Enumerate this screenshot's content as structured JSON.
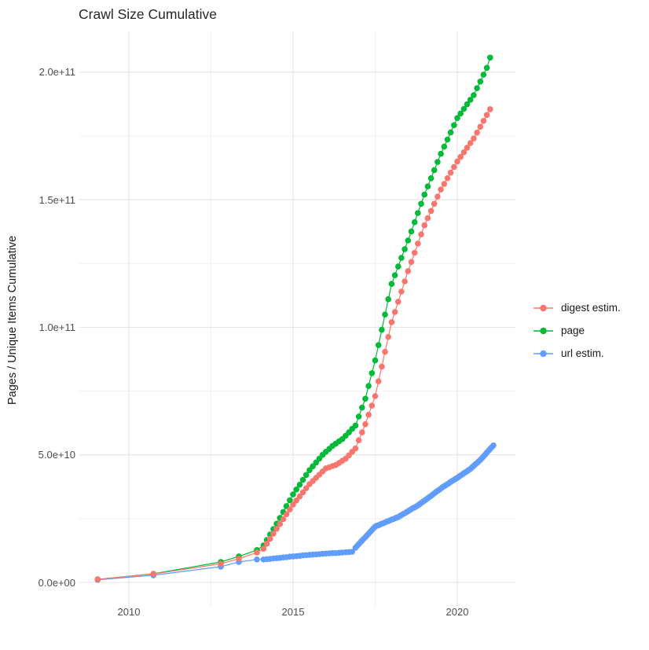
{
  "title": "Crawl Size Cumulative",
  "y_axis": {
    "label": "Pages / Unique Items Cumulative",
    "tick_labels": [
      "0.0e+00",
      "5.0e+10",
      "1.0e+11",
      "1.5e+11",
      "2.0e+11"
    ]
  },
  "x_axis": {
    "tick_labels": [
      "2010",
      "2015",
      "2020"
    ]
  },
  "legend": [
    {
      "label": "digest estim.",
      "color": "#F8766D"
    },
    {
      "label": "page",
      "color": "#00BA38"
    },
    {
      "label": "url estim.",
      "color": "#619CFF"
    }
  ],
  "chart_data": {
    "type": "scatter",
    "title": "Crawl Size Cumulative",
    "xlabel": "",
    "ylabel": "Pages / Unique Items Cumulative",
    "value_unit": "1e10 pages (e.g. 20.57 means 2.057e11)",
    "x_ticks": [
      2010,
      2015,
      2020
    ],
    "x_minor_ticks": [
      2012.5,
      2017.5
    ],
    "y_ticks": [
      0,
      5,
      10,
      15,
      20
    ],
    "y_minor_ticks": [
      2.5,
      7.5,
      12.5,
      17.5
    ],
    "xlim": [
      2008.45,
      2021.75
    ],
    "ylim": [
      -1.0,
      21.6
    ],
    "grid": "on",
    "legend_position": "right",
    "series": [
      {
        "name": "digest estim.",
        "color": "#F8766D",
        "points": [
          [
            2009.05,
            0.12
          ],
          [
            2010.75,
            0.33
          ],
          [
            2012.8,
            0.73
          ],
          [
            2013.35,
            0.93
          ],
          [
            2013.9,
            1.17
          ],
          [
            2014.1,
            1.32
          ],
          [
            2014.2,
            1.52
          ],
          [
            2014.3,
            1.71
          ],
          [
            2014.4,
            1.91
          ],
          [
            2014.5,
            2.1
          ],
          [
            2014.6,
            2.29
          ],
          [
            2014.7,
            2.48
          ],
          [
            2014.8,
            2.67
          ],
          [
            2014.9,
            2.86
          ],
          [
            2015.0,
            3.05
          ],
          [
            2015.1,
            3.21
          ],
          [
            2015.2,
            3.37
          ],
          [
            2015.3,
            3.53
          ],
          [
            2015.4,
            3.69
          ],
          [
            2015.5,
            3.85
          ],
          [
            2015.6,
            3.97
          ],
          [
            2015.7,
            4.1
          ],
          [
            2015.8,
            4.22
          ],
          [
            2015.9,
            4.35
          ],
          [
            2016.0,
            4.47
          ],
          [
            2016.1,
            4.51
          ],
          [
            2016.2,
            4.56
          ],
          [
            2016.3,
            4.6
          ],
          [
            2016.4,
            4.68
          ],
          [
            2016.5,
            4.77
          ],
          [
            2016.6,
            4.85
          ],
          [
            2016.7,
            4.98
          ],
          [
            2016.8,
            5.12
          ],
          [
            2016.9,
            5.25
          ],
          [
            2017.0,
            5.57
          ],
          [
            2017.1,
            5.88
          ],
          [
            2017.2,
            6.2
          ],
          [
            2017.3,
            6.57
          ],
          [
            2017.4,
            6.93
          ],
          [
            2017.5,
            7.3
          ],
          [
            2017.6,
            7.88
          ],
          [
            2017.7,
            8.46
          ],
          [
            2017.8,
            9.04
          ],
          [
            2017.9,
            9.62
          ],
          [
            2018.0,
            10.2
          ],
          [
            2018.1,
            10.6
          ],
          [
            2018.2,
            11.0
          ],
          [
            2018.3,
            11.4
          ],
          [
            2018.4,
            11.8
          ],
          [
            2018.5,
            12.2
          ],
          [
            2018.6,
            12.56
          ],
          [
            2018.7,
            12.92
          ],
          [
            2018.8,
            13.28
          ],
          [
            2018.9,
            13.64
          ],
          [
            2019.0,
            14.0
          ],
          [
            2019.1,
            14.28
          ],
          [
            2019.2,
            14.56
          ],
          [
            2019.3,
            14.84
          ],
          [
            2019.4,
            15.12
          ],
          [
            2019.5,
            15.4
          ],
          [
            2019.6,
            15.62
          ],
          [
            2019.7,
            15.84
          ],
          [
            2019.8,
            16.06
          ],
          [
            2019.9,
            16.28
          ],
          [
            2020.0,
            16.5
          ],
          [
            2020.1,
            16.68
          ],
          [
            2020.2,
            16.86
          ],
          [
            2020.3,
            17.04
          ],
          [
            2020.4,
            17.22
          ],
          [
            2020.5,
            17.4
          ],
          [
            2020.6,
            17.63
          ],
          [
            2020.7,
            17.86
          ],
          [
            2020.8,
            18.09
          ],
          [
            2020.9,
            18.32
          ],
          [
            2021.0,
            18.55
          ]
        ]
      },
      {
        "name": "page",
        "color": "#00BA38",
        "points": [
          [
            2009.05,
            0.12
          ],
          [
            2010.75,
            0.34
          ],
          [
            2012.8,
            0.8
          ],
          [
            2013.35,
            1.02
          ],
          [
            2013.9,
            1.27
          ],
          [
            2014.1,
            1.45
          ],
          [
            2014.2,
            1.66
          ],
          [
            2014.3,
            1.88
          ],
          [
            2014.4,
            2.09
          ],
          [
            2014.5,
            2.3
          ],
          [
            2014.6,
            2.53
          ],
          [
            2014.7,
            2.76
          ],
          [
            2014.8,
            2.99
          ],
          [
            2014.9,
            3.22
          ],
          [
            2015.0,
            3.45
          ],
          [
            2015.1,
            3.64
          ],
          [
            2015.2,
            3.83
          ],
          [
            2015.3,
            4.02
          ],
          [
            2015.4,
            4.21
          ],
          [
            2015.5,
            4.4
          ],
          [
            2015.6,
            4.55
          ],
          [
            2015.7,
            4.7
          ],
          [
            2015.8,
            4.85
          ],
          [
            2015.9,
            5.0
          ],
          [
            2016.0,
            5.12
          ],
          [
            2016.1,
            5.23
          ],
          [
            2016.2,
            5.35
          ],
          [
            2016.3,
            5.44
          ],
          [
            2016.4,
            5.53
          ],
          [
            2016.5,
            5.62
          ],
          [
            2016.6,
            5.75
          ],
          [
            2016.7,
            5.88
          ],
          [
            2016.8,
            6.02
          ],
          [
            2016.9,
            6.15
          ],
          [
            2017.0,
            6.5
          ],
          [
            2017.1,
            6.85
          ],
          [
            2017.2,
            7.2
          ],
          [
            2017.3,
            7.7
          ],
          [
            2017.4,
            8.2
          ],
          [
            2017.5,
            8.7
          ],
          [
            2017.6,
            9.3
          ],
          [
            2017.7,
            9.9
          ],
          [
            2017.8,
            10.5
          ],
          [
            2017.9,
            11.1
          ],
          [
            2018.0,
            11.7
          ],
          [
            2018.1,
            12.04
          ],
          [
            2018.2,
            12.38
          ],
          [
            2018.3,
            12.72
          ],
          [
            2018.4,
            13.06
          ],
          [
            2018.5,
            13.4
          ],
          [
            2018.6,
            13.76
          ],
          [
            2018.7,
            14.12
          ],
          [
            2018.8,
            14.48
          ],
          [
            2018.9,
            14.84
          ],
          [
            2019.0,
            15.2
          ],
          [
            2019.1,
            15.52
          ],
          [
            2019.2,
            15.84
          ],
          [
            2019.3,
            16.16
          ],
          [
            2019.4,
            16.48
          ],
          [
            2019.5,
            16.8
          ],
          [
            2019.6,
            17.08
          ],
          [
            2019.7,
            17.36
          ],
          [
            2019.8,
            17.64
          ],
          [
            2019.9,
            17.92
          ],
          [
            2020.0,
            18.2
          ],
          [
            2020.1,
            18.38
          ],
          [
            2020.2,
            18.56
          ],
          [
            2020.3,
            18.74
          ],
          [
            2020.4,
            18.92
          ],
          [
            2020.5,
            19.1
          ],
          [
            2020.6,
            19.37
          ],
          [
            2020.7,
            19.63
          ],
          [
            2020.8,
            19.9
          ],
          [
            2020.9,
            20.17
          ],
          [
            2021.0,
            20.57
          ]
        ]
      },
      {
        "name": "url estim.",
        "color": "#619CFF",
        "points": [
          [
            2009.05,
            0.1
          ],
          [
            2010.75,
            0.28
          ],
          [
            2012.8,
            0.62
          ],
          [
            2013.35,
            0.8
          ],
          [
            2013.9,
            0.9
          ],
          [
            2014.1,
            0.9
          ],
          [
            2014.2,
            0.91
          ],
          [
            2014.3,
            0.92
          ],
          [
            2014.4,
            0.94
          ],
          [
            2014.5,
            0.95
          ],
          [
            2014.6,
            0.96
          ],
          [
            2014.7,
            0.98
          ],
          [
            2014.8,
            0.99
          ],
          [
            2014.9,
            1.01
          ],
          [
            2015.0,
            1.02
          ],
          [
            2015.1,
            1.03
          ],
          [
            2015.2,
            1.04
          ],
          [
            2015.3,
            1.06
          ],
          [
            2015.4,
            1.07
          ],
          [
            2015.5,
            1.08
          ],
          [
            2015.6,
            1.09
          ],
          [
            2015.7,
            1.1
          ],
          [
            2015.8,
            1.11
          ],
          [
            2015.9,
            1.12
          ],
          [
            2016.0,
            1.13
          ],
          [
            2016.1,
            1.14
          ],
          [
            2016.2,
            1.15
          ],
          [
            2016.3,
            1.15
          ],
          [
            2016.4,
            1.16
          ],
          [
            2016.5,
            1.17
          ],
          [
            2016.6,
            1.18
          ],
          [
            2016.7,
            1.19
          ],
          [
            2016.8,
            1.2
          ],
          [
            2016.9,
            1.36
          ],
          [
            2016.95,
            1.43
          ],
          [
            2017.0,
            1.5
          ],
          [
            2017.05,
            1.57
          ],
          [
            2017.1,
            1.64
          ],
          [
            2017.15,
            1.71
          ],
          [
            2017.2,
            1.77
          ],
          [
            2017.25,
            1.84
          ],
          [
            2017.3,
            1.91
          ],
          [
            2017.35,
            1.98
          ],
          [
            2017.4,
            2.05
          ],
          [
            2017.45,
            2.12
          ],
          [
            2017.5,
            2.19
          ],
          [
            2017.55,
            2.22
          ],
          [
            2017.6,
            2.24
          ],
          [
            2017.65,
            2.27
          ],
          [
            2017.7,
            2.3
          ],
          [
            2017.75,
            2.32
          ],
          [
            2017.8,
            2.35
          ],
          [
            2017.85,
            2.38
          ],
          [
            2017.9,
            2.4
          ],
          [
            2017.95,
            2.43
          ],
          [
            2018.0,
            2.46
          ],
          [
            2018.05,
            2.48
          ],
          [
            2018.1,
            2.51
          ],
          [
            2018.15,
            2.54
          ],
          [
            2018.2,
            2.56
          ],
          [
            2018.25,
            2.6
          ],
          [
            2018.3,
            2.64
          ],
          [
            2018.35,
            2.68
          ],
          [
            2018.4,
            2.71
          ],
          [
            2018.45,
            2.75
          ],
          [
            2018.5,
            2.79
          ],
          [
            2018.55,
            2.83
          ],
          [
            2018.6,
            2.87
          ],
          [
            2018.65,
            2.91
          ],
          [
            2018.7,
            2.94
          ],
          [
            2018.75,
            2.98
          ],
          [
            2018.8,
            3.02
          ],
          [
            2018.85,
            3.06
          ],
          [
            2018.9,
            3.11
          ],
          [
            2018.95,
            3.16
          ],
          [
            2019.0,
            3.2
          ],
          [
            2019.05,
            3.25
          ],
          [
            2019.1,
            3.3
          ],
          [
            2019.15,
            3.35
          ],
          [
            2019.2,
            3.39
          ],
          [
            2019.25,
            3.44
          ],
          [
            2019.3,
            3.49
          ],
          [
            2019.35,
            3.54
          ],
          [
            2019.4,
            3.59
          ],
          [
            2019.45,
            3.63
          ],
          [
            2019.5,
            3.68
          ],
          [
            2019.55,
            3.73
          ],
          [
            2019.6,
            3.77
          ],
          [
            2019.65,
            3.81
          ],
          [
            2019.7,
            3.85
          ],
          [
            2019.75,
            3.89
          ],
          [
            2019.8,
            3.94
          ],
          [
            2019.85,
            3.98
          ],
          [
            2019.9,
            4.02
          ],
          [
            2019.95,
            4.06
          ],
          [
            2020.0,
            4.1
          ],
          [
            2020.05,
            4.14
          ],
          [
            2020.1,
            4.19
          ],
          [
            2020.15,
            4.23
          ],
          [
            2020.2,
            4.28
          ],
          [
            2020.25,
            4.32
          ],
          [
            2020.3,
            4.36
          ],
          [
            2020.35,
            4.41
          ],
          [
            2020.4,
            4.45
          ],
          [
            2020.45,
            4.51
          ],
          [
            2020.5,
            4.57
          ],
          [
            2020.55,
            4.63
          ],
          [
            2020.6,
            4.68
          ],
          [
            2020.65,
            4.74
          ],
          [
            2020.7,
            4.8
          ],
          [
            2020.75,
            4.87
          ],
          [
            2020.8,
            4.94
          ],
          [
            2020.85,
            5.01
          ],
          [
            2020.9,
            5.09
          ],
          [
            2020.95,
            5.16
          ],
          [
            2021.0,
            5.23
          ],
          [
            2021.05,
            5.3
          ],
          [
            2021.1,
            5.37
          ]
        ]
      }
    ]
  }
}
